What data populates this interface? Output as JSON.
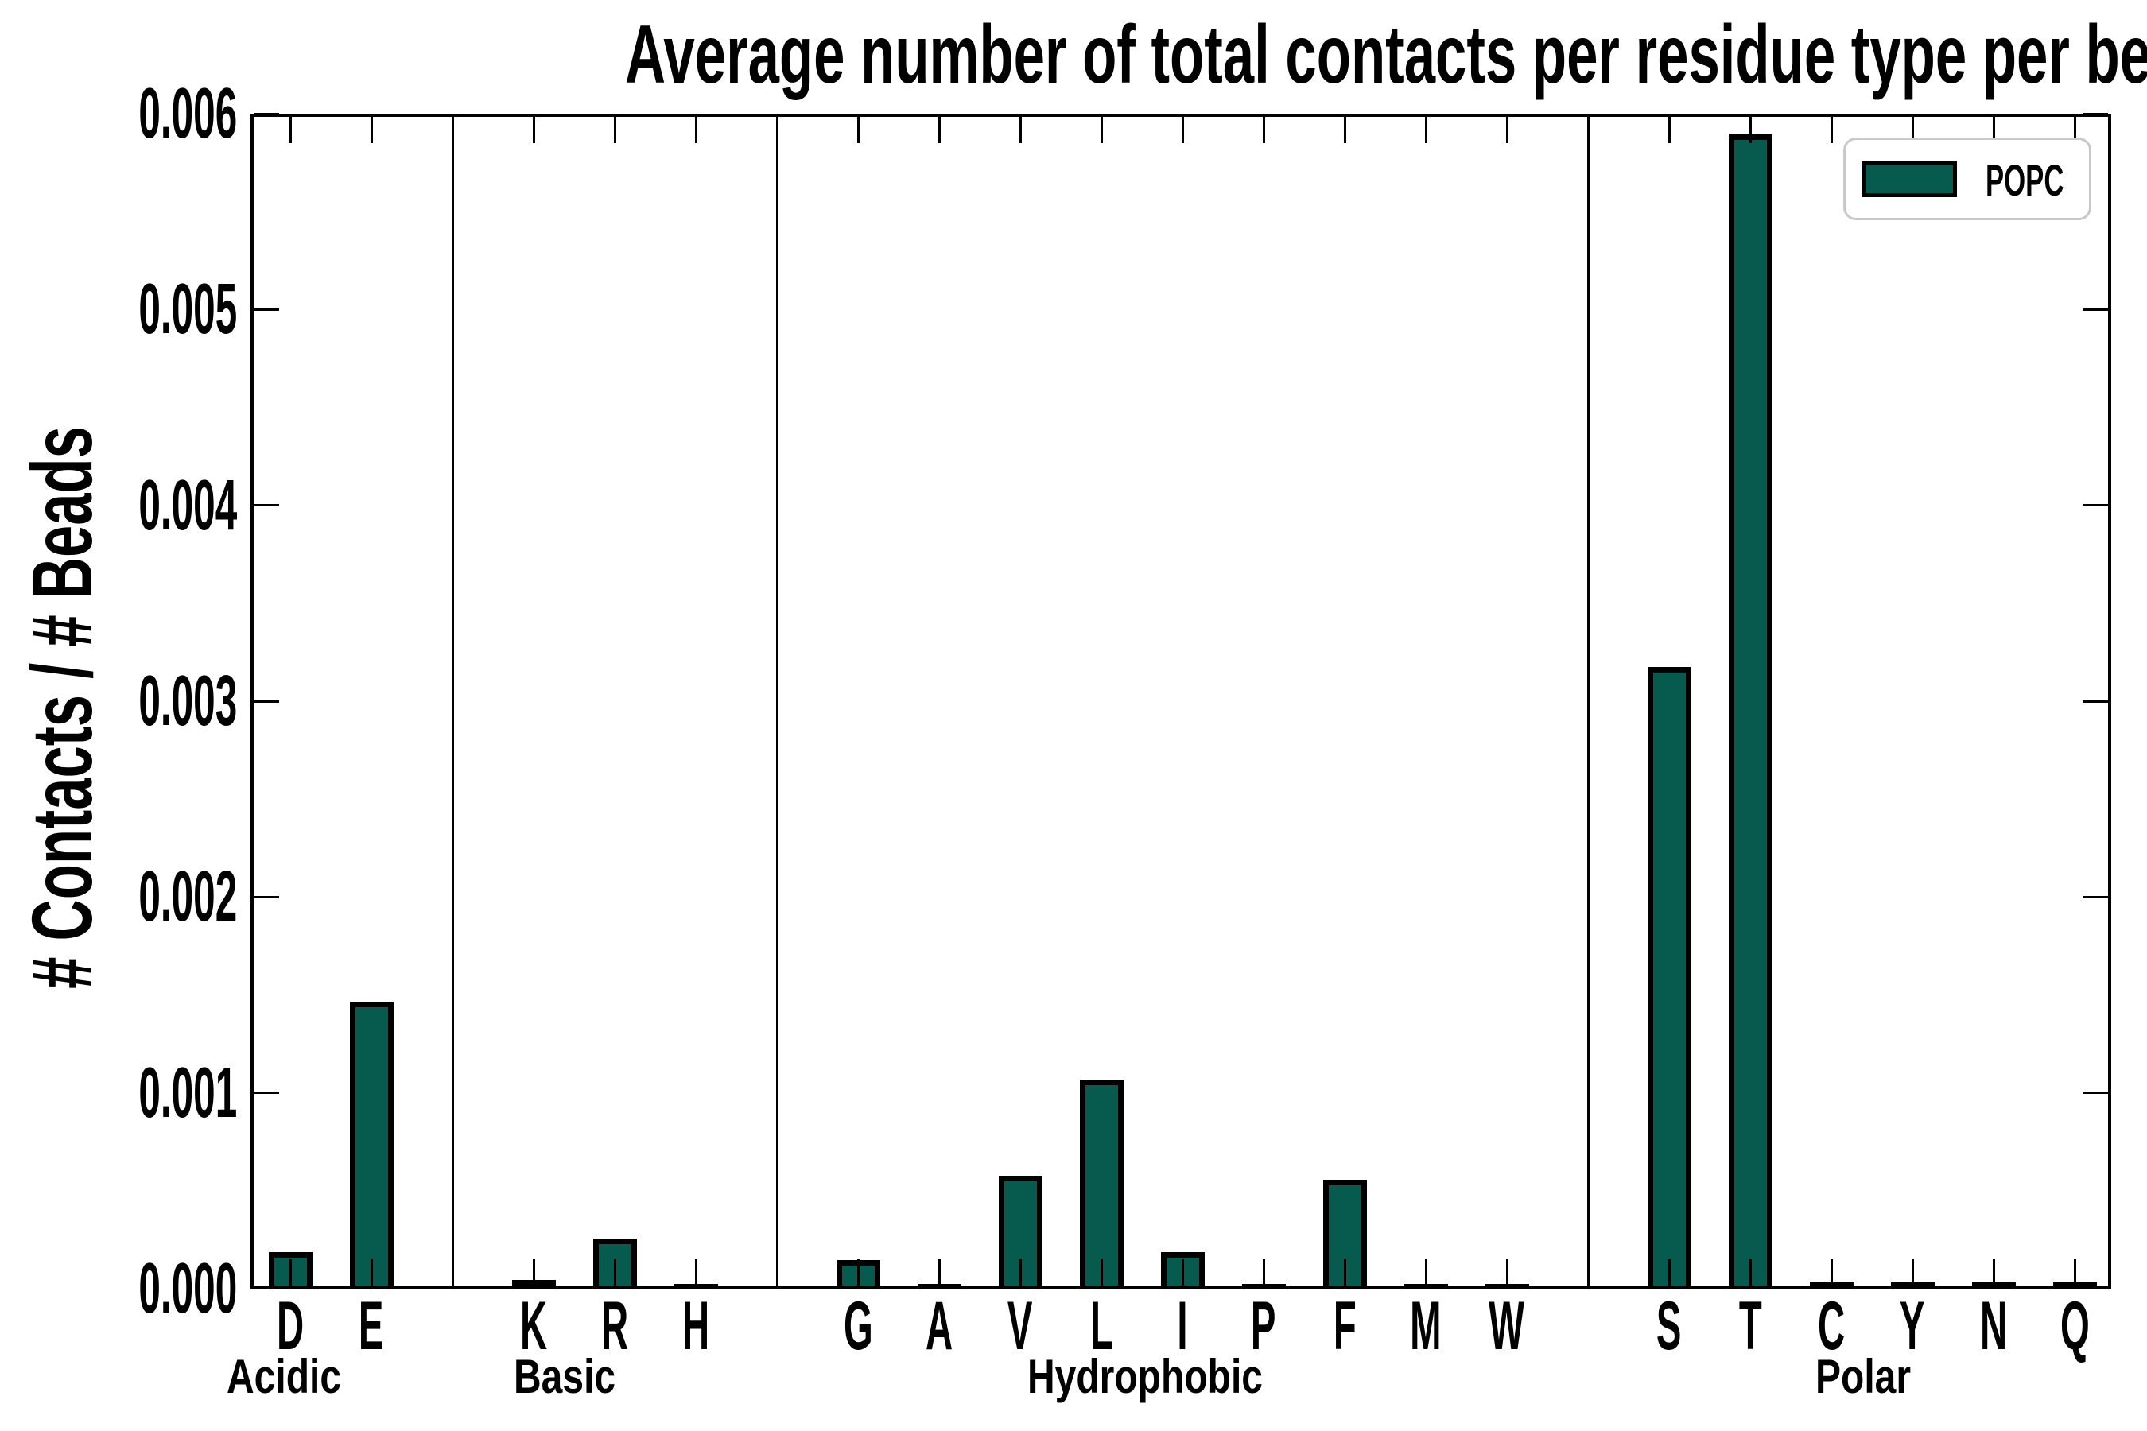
{
  "chart_data": {
    "type": "bar",
    "title": "Average number of total contacts per residue type per bead",
    "xlabel": "",
    "ylabel": "# Contacts / # Beads",
    "ylim": [
      0,
      0.006
    ],
    "y_ticks": [
      "0.000",
      "0.001",
      "0.002",
      "0.003",
      "0.004",
      "0.005",
      "0.006"
    ],
    "grid": false,
    "legend": {
      "entries": [
        "POPC"
      ],
      "position": "upper right"
    },
    "bar_color": "#075B4E",
    "bar_edge_color": "#000000",
    "groups": [
      {
        "label": "Acidic",
        "categories": [
          "D",
          "E"
        ],
        "values": [
          0.00017,
          0.00145
        ]
      },
      {
        "label": "Basic",
        "categories": [
          "K",
          "R",
          "H"
        ],
        "values": [
          3e-05,
          0.00024,
          1e-05
        ]
      },
      {
        "label": "Hydrophobic",
        "categories": [
          "G",
          "A",
          "V",
          "L",
          "I",
          "P",
          "F",
          "M",
          "W"
        ],
        "values": [
          0.00013,
          5e-06,
          0.00056,
          0.00105,
          0.00017,
          5e-06,
          0.00054,
          5e-06,
          5e-06
        ]
      },
      {
        "label": "Polar",
        "categories": [
          "S",
          "T",
          "C",
          "Y",
          "N",
          "Q"
        ],
        "values": [
          0.00316,
          0.00588,
          1.5e-05,
          1.5e-05,
          1.5e-05,
          1.5e-05
        ]
      }
    ],
    "categories": [
      "D",
      "E",
      "K",
      "R",
      "H",
      "G",
      "A",
      "V",
      "L",
      "I",
      "P",
      "F",
      "M",
      "W",
      "S",
      "T",
      "C",
      "Y",
      "N",
      "Q"
    ],
    "values": [
      0.00017,
      0.00145,
      3e-05,
      0.00024,
      1e-05,
      0.00013,
      5e-06,
      0.00056,
      0.00105,
      0.00017,
      5e-06,
      0.00054,
      5e-06,
      5e-06,
      0.00316,
      0.00588,
      1.5e-05,
      1.5e-05,
      1.5e-05,
      1.5e-05
    ]
  },
  "styles": {
    "background": "#ffffff",
    "axis_color": "#000000",
    "text_color": "#000000",
    "legend_border_color": "#c9c9c9"
  }
}
